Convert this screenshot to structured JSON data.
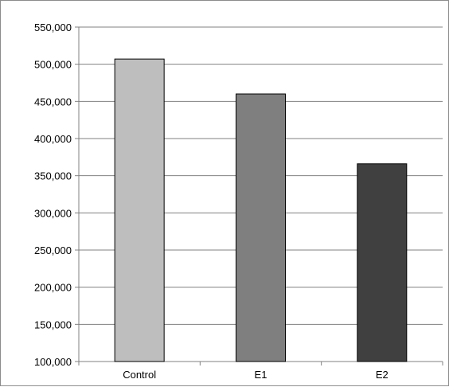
{
  "chart_data": {
    "type": "bar",
    "title": "",
    "xlabel": "",
    "ylabel": "",
    "categories": [
      "Control",
      "E1",
      "E2"
    ],
    "values": [
      507000,
      460000,
      366000
    ],
    "bar_colors": [
      "#bebebe",
      "#7f7f7f",
      "#404040"
    ],
    "ylim": [
      100000,
      550000
    ],
    "yticks": [
      100000,
      150000,
      200000,
      250000,
      300000,
      350000,
      400000,
      450000,
      500000,
      550000
    ],
    "ytick_labels": [
      "100,000",
      "150,000",
      "200,000",
      "250,000",
      "300,000",
      "350,000",
      "400,000",
      "450,000",
      "500,000",
      "550,000"
    ],
    "grid": true,
    "legend": "none"
  }
}
